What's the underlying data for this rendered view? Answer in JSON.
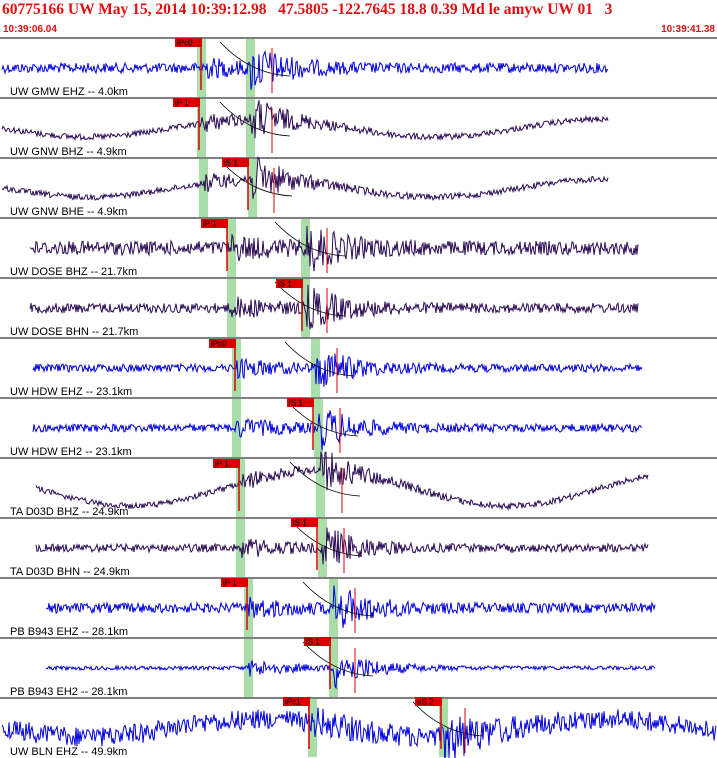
{
  "header": {
    "title": "60775166 UW May 15, 2014 10:39:12.98   47.5805 -122.7645 18.8 0.39 Md le amyw UW 01   3",
    "start_time": "10:39:06.04",
    "end_time": "10:39:41.38"
  },
  "colors": {
    "title_red": "#e01010",
    "trace_blue": "#0000dd",
    "trace_dark": "#2a0a55",
    "pick_red": "#dd0000",
    "window_green": "#a9dea9",
    "trend_black": "#000000"
  },
  "chart_data": {
    "type": "seismogram",
    "time_window": [
      "10:39:06.04",
      "10:39:41.38"
    ],
    "traces": [
      {
        "label": "UW GMW EHZ -- 4.0km",
        "color": "blue",
        "p_pick": "iPc0",
        "s_pick": null
      },
      {
        "label": "UW GNW BHZ -- 4.9km",
        "color": "dark",
        "p_pick": "iP 1",
        "s_pick": null
      },
      {
        "label": "UW GNW BHE -- 4.9km",
        "color": "dark",
        "p_pick": null,
        "s_pick": "iS 1"
      },
      {
        "label": "UW DOSE BHZ -- 21.7km",
        "color": "dark",
        "p_pick": "iP 1",
        "s_pick": null
      },
      {
        "label": "UW DOSE BHN -- 21.7km",
        "color": "dark",
        "p_pick": null,
        "s_pick": "iS 1"
      },
      {
        "label": "UW HDW EHZ -- 23.1km",
        "color": "blue",
        "p_pick": "iPc0",
        "s_pick": null
      },
      {
        "label": "UW HDW EH2 -- 23.1km",
        "color": "blue",
        "p_pick": null,
        "s_pick": "iS 1"
      },
      {
        "label": "TA D03D BHZ -- 24.9km",
        "color": "dark",
        "p_pick": "iP 1",
        "s_pick": null
      },
      {
        "label": "TA D03D BHN -- 24.9km",
        "color": "dark",
        "p_pick": null,
        "s_pick": "iS 1"
      },
      {
        "label": "PB B943 EHZ -- 28.1km",
        "color": "blue",
        "p_pick": "iP 1",
        "s_pick": null
      },
      {
        "label": "PB B943 EH2 -- 28.1km",
        "color": "blue",
        "p_pick": null,
        "s_pick": "iS 1"
      },
      {
        "label": "UW BLN EHZ -- 49.9km",
        "color": "blue",
        "p_pick": "iPc1",
        "s_pick": "eS 2"
      }
    ]
  }
}
